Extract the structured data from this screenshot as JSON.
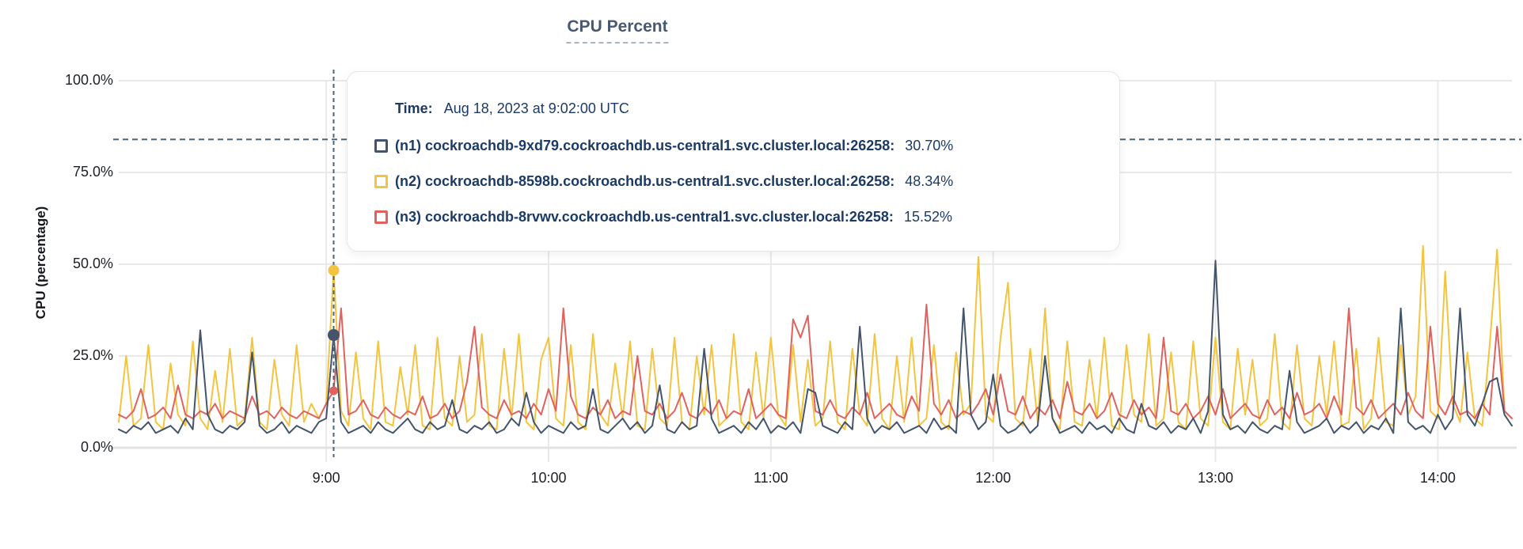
{
  "tooltip": {
    "time_label": "Time:",
    "time_value": "Aug 18, 2023 at 9:02:00 UTC",
    "series": [
      {
        "id": "n1",
        "color": "#44546b",
        "name": "(n1) cockroachdb-9xd79.cockroachdb.us-central1.svc.cluster.local:26258:",
        "value": "30.70%"
      },
      {
        "id": "n2",
        "color": "#f3c43f",
        "name": "(n2) cockroachdb-8598b.cockroachdb.us-central1.svc.cluster.local:26258:",
        "value": "48.34%"
      },
      {
        "id": "n3",
        "color": "#e0625e",
        "name": "(n3) cockroachdb-8rvwv.cockroachdb.us-central1.svc.cluster.local:26258:",
        "value": "15.52%"
      }
    ]
  },
  "chart_data": {
    "type": "line",
    "title": "CPU Percent",
    "xlabel": "",
    "ylabel": "CPU (percentage)",
    "ylim": [
      0,
      100
    ],
    "grid": true,
    "legend_position": "tooltip-overlay",
    "yticks": [
      {
        "value": 100,
        "label": "100.0%"
      },
      {
        "value": 75,
        "label": "75.0%"
      },
      {
        "value": 50,
        "label": "50.0%"
      },
      {
        "value": 25,
        "label": "25.0%"
      },
      {
        "value": 0,
        "label": "0.0%"
      }
    ],
    "xticks": [
      {
        "minute": 540,
        "label": "9:00"
      },
      {
        "minute": 600,
        "label": "10:00"
      },
      {
        "minute": 660,
        "label": "11:00"
      },
      {
        "minute": 720,
        "label": "12:00"
      },
      {
        "minute": 780,
        "label": "13:00"
      },
      {
        "minute": 840,
        "label": "14:00"
      }
    ],
    "x_start_minutes": 484,
    "x_step_minutes": 2,
    "x_end_minutes": 860,
    "threshold_percent": 84,
    "hover": {
      "minute": 542,
      "time": "9:02:00",
      "points": [
        {
          "id": "n2",
          "value": 48.34,
          "radius": 7
        },
        {
          "id": "n3",
          "value": 15.52,
          "radius": 5.5
        },
        {
          "id": "n1",
          "value": 30.7,
          "radius": 7.5
        }
      ]
    },
    "draw_order": [
      "n2",
      "n3",
      "n1"
    ],
    "series": [
      {
        "id": "n1",
        "color": "#44546b",
        "values": [
          5,
          4,
          6,
          5,
          7,
          4,
          5,
          6,
          4,
          8,
          5,
          32,
          9,
          5,
          4,
          6,
          5,
          7,
          26,
          6,
          4,
          5,
          7,
          4,
          6,
          5,
          4,
          7,
          8,
          30.7,
          7,
          4,
          5,
          6,
          4,
          7,
          5,
          4,
          6,
          8,
          5,
          4,
          7,
          5,
          6,
          13,
          5,
          4,
          6,
          5,
          7,
          4,
          5,
          8,
          6,
          15,
          7,
          4,
          6,
          5,
          4,
          7,
          5,
          6,
          16,
          5,
          4,
          6,
          8,
          5,
          7,
          4,
          6,
          17,
          5,
          4,
          7,
          5,
          6,
          27,
          8,
          4,
          5,
          6,
          4,
          7,
          5,
          8,
          4,
          6,
          5,
          7,
          4,
          16,
          15,
          6,
          5,
          4,
          7,
          5,
          33,
          8,
          4,
          6,
          5,
          7,
          4,
          5,
          6,
          4,
          8,
          5,
          6,
          4,
          38,
          9,
          5,
          7,
          20,
          6,
          4,
          5,
          7,
          4,
          6,
          25,
          8,
          4,
          5,
          6,
          4,
          7,
          5,
          6,
          4,
          8,
          5,
          4,
          12,
          6,
          5,
          7,
          4,
          6,
          5,
          8,
          4,
          10,
          51,
          9,
          5,
          6,
          4,
          7,
          5,
          4,
          6,
          5,
          21,
          7,
          4,
          5,
          6,
          8,
          4,
          6,
          5,
          7,
          4,
          6,
          5,
          8,
          4,
          38,
          7,
          5,
          6,
          4,
          9,
          5,
          8,
          38,
          9,
          6,
          12,
          18,
          19,
          9,
          6
        ]
      },
      {
        "id": "n2",
        "color": "#f3c43f",
        "values": [
          7,
          25,
          6,
          8,
          28,
          7,
          5,
          23,
          9,
          6,
          29,
          8,
          5,
          21,
          7,
          27,
          6,
          8,
          30,
          7,
          5,
          24,
          9,
          6,
          28,
          7,
          12,
          8,
          12,
          48.34,
          10,
          6,
          26,
          8,
          5,
          29,
          7,
          6,
          22,
          9,
          28,
          6,
          5,
          30,
          8,
          6,
          25,
          7,
          9,
          31,
          6,
          5,
          27,
          8,
          31,
          7,
          5,
          24,
          30,
          8,
          6,
          28,
          7,
          5,
          31,
          9,
          6,
          23,
          8,
          29,
          6,
          5,
          27,
          8,
          6,
          30,
          7,
          5,
          25,
          9,
          28,
          6,
          8,
          31,
          7,
          5,
          26,
          8,
          30,
          9,
          6,
          28,
          7,
          24,
          6,
          8,
          29,
          7,
          5,
          27,
          9,
          6,
          31,
          8,
          5,
          25,
          7,
          30,
          6,
          8,
          28,
          7,
          5,
          26,
          9,
          12,
          52,
          9,
          7,
          30,
          45,
          8,
          6,
          27,
          7,
          38,
          8,
          5,
          29,
          7,
          6,
          24,
          8,
          30,
          6,
          5,
          28,
          9,
          7,
          31,
          6,
          8,
          26,
          7,
          5,
          29,
          8,
          6,
          30,
          7,
          5,
          27,
          9,
          24,
          6,
          8,
          31,
          7,
          5,
          28,
          8,
          6,
          25,
          9,
          29,
          6,
          7,
          27,
          5,
          8,
          30,
          7,
          6,
          28,
          9,
          14,
          55,
          10,
          8,
          48,
          12,
          7,
          26,
          8,
          6,
          28,
          54,
          10,
          8
        ]
      },
      {
        "id": "n3",
        "color": "#e0625e",
        "values": [
          9,
          8,
          10,
          16,
          8,
          9,
          11,
          8,
          17,
          9,
          8,
          10,
          9,
          12,
          8,
          10,
          9,
          8,
          14,
          9,
          10,
          8,
          11,
          9,
          8,
          10,
          9,
          8,
          12,
          15.52,
          38,
          9,
          10,
          13,
          9,
          8,
          11,
          9,
          8,
          10,
          9,
          14,
          8,
          9,
          12,
          8,
          10,
          18,
          33,
          11,
          9,
          8,
          13,
          9,
          10,
          8,
          12,
          9,
          16,
          10,
          38,
          14,
          9,
          8,
          11,
          9,
          13,
          8,
          10,
          9,
          25,
          10,
          9,
          12,
          8,
          10,
          15,
          9,
          8,
          11,
          9,
          13,
          8,
          10,
          9,
          16,
          8,
          10,
          12,
          9,
          8,
          35,
          30,
          36,
          10,
          9,
          13,
          9,
          8,
          11,
          9,
          15,
          8,
          10,
          12,
          9,
          8,
          14,
          10,
          39,
          12,
          9,
          13,
          8,
          10,
          9,
          12,
          16,
          9,
          20,
          10,
          9,
          14,
          8,
          11,
          9,
          13,
          8,
          18,
          10,
          9,
          12,
          8,
          10,
          15,
          9,
          8,
          13,
          9,
          11,
          8,
          30,
          10,
          9,
          12,
          8,
          10,
          14,
          9,
          16,
          8,
          10,
          12,
          9,
          8,
          13,
          9,
          11,
          8,
          15,
          9,
          10,
          12,
          8,
          14,
          9,
          38,
          11,
          9,
          13,
          8,
          10,
          12,
          9,
          15,
          10,
          8,
          33,
          12,
          9,
          14,
          9,
          10,
          8,
          12,
          9,
          33,
          10,
          8
        ]
      }
    ],
    "colors": {
      "gridline": "#e9e9e9",
      "axis": "#e2e2e2",
      "dashed_guides": "#4b657c",
      "title": "#475872",
      "tooltip_text": "#1b3a66"
    }
  }
}
